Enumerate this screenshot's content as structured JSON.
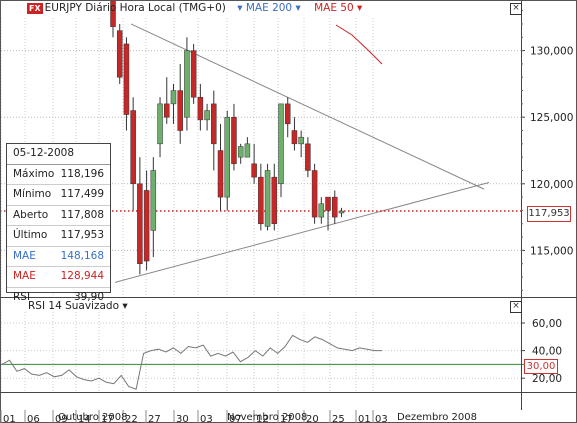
{
  "header": {
    "fx_badge": "FX",
    "title": "EURJPY Diário Hora Local (TMG+0)",
    "mae200_label": "MAE 200",
    "mae50_label": "MAE 50",
    "mae200_color": "#3a6fc4",
    "mae50_color": "#cc2222"
  },
  "price_axis": {
    "ticks": [
      "130,000",
      "125,000",
      "120,000",
      "115,000"
    ],
    "current_price": "117,953"
  },
  "rsi_panel": {
    "title": "RSI 14 Suavizado",
    "ticks": [
      "60,00",
      "40,00",
      "20,00"
    ],
    "marker": "30,00"
  },
  "time_axis": {
    "days": [
      "01",
      "06",
      "09",
      "14",
      "17",
      "22",
      "27",
      "30",
      "03",
      "07",
      "12",
      "17",
      "20",
      "25",
      "01",
      "03"
    ],
    "months": [
      "Outubro 2008",
      "Novembro 2008",
      "Dezembro 2008"
    ]
  },
  "info_box": {
    "date": "05-12-2008",
    "rows": [
      {
        "label": "Máximo",
        "value": "118,196",
        "color": "#222222"
      },
      {
        "label": "Mínimo",
        "value": "117,499",
        "color": "#222222"
      },
      {
        "label": "Aberto",
        "value": "117,808",
        "color": "#222222"
      },
      {
        "label": "Último",
        "value": "117,953",
        "color": "#222222"
      },
      {
        "label": "MAE",
        "value": "148,168",
        "color": "#3a6fc4"
      },
      {
        "label": "MAE",
        "value": "128,944",
        "color": "#cc2222"
      },
      {
        "label": "RSI",
        "value": "39,90",
        "color": "#222222"
      }
    ]
  },
  "colors": {
    "up": "#6cb06c",
    "down": "#c62828",
    "rsi_line": "#777777",
    "rsi_level": "#2e8b2e",
    "trendline": "#888888"
  },
  "chart_data": {
    "type": "candlestick",
    "title": "EURJPY Diário Hora Local (TMG+0)",
    "ylim": [
      111.5,
      133.8
    ],
    "y_ticks": [
      115,
      120,
      125,
      130
    ],
    "current_price": 117.953,
    "candles": [
      {
        "o": 134.5,
        "h": 134.5,
        "l": 131.0,
        "c": 131.8
      },
      {
        "o": 131.5,
        "h": 132.0,
        "l": 127.5,
        "c": 128.0
      },
      {
        "o": 130.5,
        "h": 131.0,
        "l": 124.0,
        "c": 125.2
      },
      {
        "o": 125.5,
        "h": 126.5,
        "l": 118.0,
        "c": 120.0
      },
      {
        "o": 120.0,
        "h": 122.0,
        "l": 113.2,
        "c": 114.0
      },
      {
        "o": 119.5,
        "h": 121.0,
        "l": 113.5,
        "c": 114.2
      },
      {
        "o": 116.5,
        "h": 122.0,
        "l": 114.5,
        "c": 121.0
      },
      {
        "o": 123.0,
        "h": 126.5,
        "l": 122.0,
        "c": 126.0
      },
      {
        "o": 126.0,
        "h": 128.0,
        "l": 124.5,
        "c": 125.0
      },
      {
        "o": 126.0,
        "h": 127.5,
        "l": 124.5,
        "c": 127.0
      },
      {
        "o": 127.0,
        "h": 129.0,
        "l": 123.0,
        "c": 124.0
      },
      {
        "o": 125.0,
        "h": 131.0,
        "l": 124.0,
        "c": 130.0
      },
      {
        "o": 130.0,
        "h": 130.5,
        "l": 126.0,
        "c": 126.5
      },
      {
        "o": 126.5,
        "h": 127.5,
        "l": 124.0,
        "c": 124.8
      },
      {
        "o": 124.8,
        "h": 126.0,
        "l": 124.0,
        "c": 125.5
      },
      {
        "o": 126.0,
        "h": 127.0,
        "l": 121.0,
        "c": 123.0
      },
      {
        "o": 122.5,
        "h": 124.5,
        "l": 118.0,
        "c": 119.0
      },
      {
        "o": 119.0,
        "h": 125.5,
        "l": 118.0,
        "c": 125.0
      },
      {
        "o": 125.0,
        "h": 126.0,
        "l": 121.0,
        "c": 121.5
      },
      {
        "o": 122.0,
        "h": 123.0,
        "l": 121.5,
        "c": 122.8
      },
      {
        "o": 122.0,
        "h": 123.5,
        "l": 122.0,
        "c": 123.0
      },
      {
        "o": 121.5,
        "h": 123.0,
        "l": 120.0,
        "c": 120.5
      },
      {
        "o": 120.5,
        "h": 121.5,
        "l": 116.5,
        "c": 117.0
      },
      {
        "o": 116.8,
        "h": 121.5,
        "l": 116.5,
        "c": 121.0
      },
      {
        "o": 120.5,
        "h": 121.5,
        "l": 116.5,
        "c": 117.0
      },
      {
        "o": 120.0,
        "h": 126.0,
        "l": 119.0,
        "c": 126.0
      },
      {
        "o": 126.0,
        "h": 126.5,
        "l": 123.5,
        "c": 124.5
      },
      {
        "o": 124.0,
        "h": 125.0,
        "l": 122.5,
        "c": 123.0
      },
      {
        "o": 123.0,
        "h": 124.0,
        "l": 122.0,
        "c": 123.5
      },
      {
        "o": 123.0,
        "h": 123.5,
        "l": 120.5,
        "c": 121.0
      },
      {
        "o": 121.0,
        "h": 121.5,
        "l": 117.0,
        "c": 117.5
      },
      {
        "o": 117.5,
        "h": 119.0,
        "l": 117.0,
        "c": 118.5
      },
      {
        "o": 119.0,
        "h": 119.0,
        "l": 116.5,
        "c": 118.0
      },
      {
        "o": 119.0,
        "h": 119.5,
        "l": 117.0,
        "c": 117.5
      },
      {
        "o": 117.808,
        "h": 118.196,
        "l": 117.499,
        "c": 117.953
      }
    ],
    "mae50_line": [
      [
        126,
        132.2
      ],
      [
        170,
        130.1
      ]
    ],
    "trendline_upper": [
      [
        0,
        132.5
      ],
      [
        170,
        119.5
      ]
    ],
    "trendline_lower": [
      [
        0,
        112.5
      ],
      [
        170,
        120.0
      ]
    ],
    "rsi": {
      "title": "RSI 14 Suavizado",
      "ylim": [
        10,
        68
      ],
      "level": 30,
      "values": [
        30,
        33,
        25,
        27,
        23,
        22,
        24,
        21,
        22,
        26,
        21,
        19,
        18,
        20,
        17,
        16,
        22,
        14,
        12,
        38,
        40,
        41,
        39,
        42,
        38,
        43,
        42,
        44,
        36,
        38,
        36,
        39,
        32,
        35,
        40,
        36,
        42,
        38,
        43,
        51,
        48,
        46,
        50,
        48,
        45,
        42,
        41,
        40,
        42,
        41,
        40,
        40
      ]
    }
  }
}
